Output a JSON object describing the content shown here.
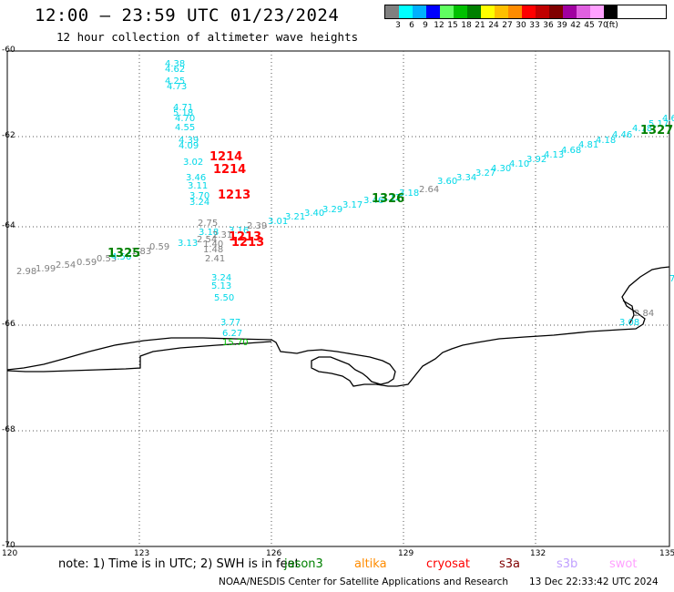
{
  "header": {
    "title": "12:00 — 23:59 UTC 01/23/2024",
    "subtitle": "12 hour collection of altimeter wave heights"
  },
  "scale": {
    "colors": [
      "#808080",
      "#00ffff",
      "#00b0ff",
      "#0000ff",
      "#60ff60",
      "#00c000",
      "#008000",
      "#ffff00",
      "#ffc000",
      "#ff8c00",
      "#ff0000",
      "#c00000",
      "#800000",
      "#a000a0",
      "#e060e0",
      "#ffa0ff",
      "#000000"
    ],
    "labels": [
      "3",
      "6",
      "9",
      "12",
      "15",
      "18",
      "21",
      "24",
      "27",
      "30",
      "33",
      "36",
      "39",
      "42",
      "45",
      "70",
      "(ft)"
    ]
  },
  "axes": {
    "lat_labels": [
      "-60",
      "-62",
      "-64",
      "-66",
      "-68",
      "-70"
    ],
    "lon_labels": [
      "120",
      "123",
      "126",
      "129",
      "132",
      "135"
    ]
  },
  "passes": [
    {
      "label": "1214",
      "color": "#ff0000"
    },
    {
      "label": "1214",
      "color": "#ff0000"
    },
    {
      "label": "1213",
      "color": "#ff0000"
    },
    {
      "label": "1213",
      "color": "#ff0000"
    },
    {
      "label": "1213",
      "color": "#ff0000"
    },
    {
      "label": "1325",
      "color": "#008000"
    },
    {
      "label": "1326",
      "color": "#008000"
    },
    {
      "label": "1327",
      "color": "#008000"
    }
  ],
  "wave_labels": [
    {
      "text": "4.38",
      "color": "#00d8e8"
    },
    {
      "text": "4.62",
      "color": "#00d8e8"
    },
    {
      "text": "4.25",
      "color": "#00d8e8"
    },
    {
      "text": "4.73",
      "color": "#00d8e8"
    },
    {
      "text": "4.71",
      "color": "#00d8e8"
    },
    {
      "text": "5.18",
      "color": "#00d8e8"
    },
    {
      "text": "4.70",
      "color": "#00d8e8"
    },
    {
      "text": "4.55",
      "color": "#00d8e8"
    },
    {
      "text": "4.39",
      "color": "#00d8e8"
    },
    {
      "text": "4.09",
      "color": "#00d8e8"
    },
    {
      "text": "3.02",
      "color": "#00d8e8"
    },
    {
      "text": "3.46",
      "color": "#00d8e8"
    },
    {
      "text": "3.11",
      "color": "#00d8e8"
    },
    {
      "text": "3.70",
      "color": "#00d8e8"
    },
    {
      "text": "3.24",
      "color": "#00d8e8"
    },
    {
      "text": "2.75",
      "color": "#808080"
    },
    {
      "text": "3.18",
      "color": "#00d8e8"
    },
    {
      "text": "2.54",
      "color": "#808080"
    },
    {
      "text": "3.13",
      "color": "#00d8e8"
    },
    {
      "text": "1.40",
      "color": "#808080"
    },
    {
      "text": "1.48",
      "color": "#808080"
    },
    {
      "text": "2.41",
      "color": "#808080"
    },
    {
      "text": "3.24",
      "color": "#00d8e8"
    },
    {
      "text": "5.13",
      "color": "#00d8e8"
    },
    {
      "text": "5.50",
      "color": "#00d8e8"
    },
    {
      "text": "3.77",
      "color": "#00d8e8"
    },
    {
      "text": "6.27",
      "color": "#00d8e8"
    },
    {
      "text": "15.70",
      "color": "#00c000"
    },
    {
      "text": "2.98",
      "color": "#808080"
    },
    {
      "text": "1.99",
      "color": "#808080"
    },
    {
      "text": "2.54",
      "color": "#808080"
    },
    {
      "text": "0.59",
      "color": "#808080"
    },
    {
      "text": "0.53",
      "color": "#808080"
    },
    {
      "text": "4.56",
      "color": "#00d8e8"
    },
    {
      "text": "1.83",
      "color": "#808080"
    },
    {
      "text": "0.59",
      "color": "#808080"
    },
    {
      "text": "2.31",
      "color": "#808080"
    },
    {
      "text": "3.16",
      "color": "#00d8e8"
    },
    {
      "text": "2.39",
      "color": "#808080"
    },
    {
      "text": "3.01",
      "color": "#00d8e8"
    },
    {
      "text": "3.21",
      "color": "#00d8e8"
    },
    {
      "text": "3.40",
      "color": "#00d8e8"
    },
    {
      "text": "3.29",
      "color": "#00d8e8"
    },
    {
      "text": "3.17",
      "color": "#00d8e8"
    },
    {
      "text": "3.46",
      "color": "#00d8e8"
    },
    {
      "text": "3.12",
      "color": "#00d8e8"
    },
    {
      "text": "3.18",
      "color": "#00d8e8"
    },
    {
      "text": "2.64",
      "color": "#808080"
    },
    {
      "text": "3.60",
      "color": "#00d8e8"
    },
    {
      "text": "3.34",
      "color": "#00d8e8"
    },
    {
      "text": "3.27",
      "color": "#00d8e8"
    },
    {
      "text": "4.30",
      "color": "#00d8e8"
    },
    {
      "text": "4.10",
      "color": "#00d8e8"
    },
    {
      "text": "3.92",
      "color": "#00d8e8"
    },
    {
      "text": "4.13",
      "color": "#00d8e8"
    },
    {
      "text": "4.68",
      "color": "#00d8e8"
    },
    {
      "text": "4.81",
      "color": "#00d8e8"
    },
    {
      "text": "4.18",
      "color": "#00d8e8"
    },
    {
      "text": "4.46",
      "color": "#00d8e8"
    },
    {
      "text": "4.78",
      "color": "#00d8e8"
    },
    {
      "text": "5.17",
      "color": "#00d8e8"
    },
    {
      "text": "4.6",
      "color": "#00d8e8"
    },
    {
      "text": "2.84",
      "color": "#808080"
    },
    {
      "text": "3.08",
      "color": "#00d8e8"
    },
    {
      "text": "7",
      "color": "#00d8e8"
    }
  ],
  "footer": {
    "note": "note: 1) Time is in UTC; 2) SWH is in feet",
    "satellites": [
      {
        "name": "jason3",
        "color": "#008000"
      },
      {
        "name": "altika",
        "color": "#ff8c00"
      },
      {
        "name": "cryosat",
        "color": "#ff0000"
      },
      {
        "name": "s3a",
        "color": "#800000"
      },
      {
        "name": "s3b",
        "color": "#c0a0ff"
      },
      {
        "name": "swot",
        "color": "#ffa0ff"
      }
    ],
    "credit": "NOAA/NESDIS Center for Satellite Applications and Research",
    "timestamp": "13 Dec 22:33:42 UTC 2024"
  }
}
